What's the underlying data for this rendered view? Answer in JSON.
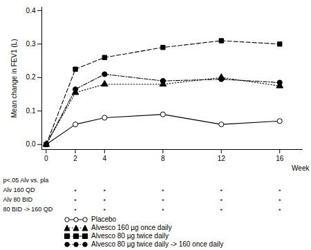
{
  "chart_data": {
    "type": "line",
    "x_label": "Week",
    "y_label": "Mean change in FEV1 (L)",
    "x": [
      0,
      2,
      4,
      8,
      12,
      16
    ],
    "xlim": [
      -0.3,
      17.6
    ],
    "xticks": [
      0,
      2,
      4,
      8,
      12,
      16
    ],
    "ylim": [
      -0.015,
      0.41
    ],
    "yticks": [
      {
        "value": 0,
        "label": "0.0"
      },
      {
        "value": 0.1,
        "label": "0.1"
      },
      {
        "value": 0.2,
        "label": "0.2"
      },
      {
        "value": 0.3,
        "label": "0.3"
      },
      {
        "value": 0.4,
        "label": "0.4"
      }
    ],
    "grid": false,
    "series": [
      {
        "name": "Placebo",
        "color": "#000000",
        "marker": "open circle",
        "line_style": "solid",
        "values": [
          0,
          0.06,
          0.08,
          0.09,
          0.06,
          0.07
        ]
      },
      {
        "name": "Alvesco 160 µg once daily",
        "color": "#000000",
        "marker": "triangle",
        "line_style": "dotted",
        "values": [
          0,
          0.155,
          0.18,
          0.18,
          0.2,
          0.175
        ]
      },
      {
        "name": "Alvesco 80 µg twice daily",
        "color": "#000000",
        "marker": "square",
        "line_style": "dashed",
        "values": [
          0,
          0.225,
          0.26,
          0.29,
          0.31,
          0.3
        ]
      },
      {
        "name": "Alvesco 80 µg twice daily -> 160 once daily",
        "color": "#000000",
        "marker": "circle",
        "line_style": "dashdot",
        "values": [
          0,
          0.165,
          0.21,
          0.19,
          0.195,
          0.185
        ]
      }
    ],
    "significance": {
      "title": "p<.05 Alv vs. pla",
      "rows": [
        {
          "label": "Alv 160 QD",
          "x": [
            2,
            4,
            8,
            12,
            16
          ],
          "text": "*"
        },
        {
          "label": "Alv 80 BID",
          "x": [
            2,
            4,
            8,
            12,
            16
          ],
          "text": "*"
        },
        {
          "label": "80 BID -> 160 QD",
          "x": [
            2,
            4,
            8,
            12,
            16
          ],
          "text": "*"
        }
      ]
    }
  }
}
